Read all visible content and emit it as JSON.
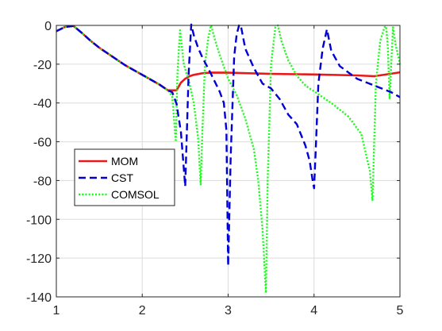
{
  "chart_data": {
    "type": "line",
    "title": "",
    "xlabel": "",
    "ylabel": "",
    "xlim": [
      1,
      5
    ],
    "ylim": [
      -140,
      0
    ],
    "xticks": [
      1,
      2,
      3,
      4,
      5
    ],
    "yticks": [
      0,
      -20,
      -40,
      -60,
      -80,
      -100,
      -120,
      -140
    ],
    "grid": true,
    "legend_position": "lower-left",
    "series": [
      {
        "name": "MOM",
        "color": "#e8191b",
        "style": "solid",
        "x": [
          1.0,
          1.1,
          1.2,
          1.3,
          1.4,
          1.5,
          1.6,
          1.7,
          1.8,
          1.9,
          2.0,
          2.1,
          2.2,
          2.3,
          2.35,
          2.4,
          2.45,
          2.5,
          2.55,
          2.6,
          2.7,
          2.8,
          3.0,
          3.5,
          4.0,
          4.5,
          4.7,
          4.85,
          5.0
        ],
        "y": [
          -3.0,
          -0.8,
          -0.3,
          -4.0,
          -8.0,
          -11.5,
          -14.5,
          -17.5,
          -20.5,
          -23.0,
          -25.5,
          -28.0,
          -30.5,
          -33.5,
          -33.5,
          -33.5,
          -29.5,
          -27.5,
          -26.2,
          -25.5,
          -24.7,
          -24.3,
          -24.4,
          -25.0,
          -25.3,
          -25.8,
          -26.2,
          -25.2,
          -24.2
        ]
      },
      {
        "name": "CST",
        "color": "#0000d4",
        "style": "dashed",
        "x": [
          1.0,
          1.1,
          1.2,
          1.3,
          1.4,
          1.5,
          1.6,
          1.7,
          1.8,
          1.9,
          2.0,
          2.1,
          2.2,
          2.3,
          2.35,
          2.4,
          2.45,
          2.5,
          2.54,
          2.57,
          2.6,
          2.65,
          2.7,
          2.8,
          2.9,
          2.95,
          2.98,
          3.0,
          3.03,
          3.07,
          3.1,
          3.13,
          3.15,
          3.2,
          3.3,
          3.4,
          3.5,
          3.6,
          3.7,
          3.8,
          3.9,
          3.95,
          3.98,
          4.0,
          4.02,
          4.05,
          4.1,
          4.15,
          4.2,
          4.3,
          4.5,
          4.7,
          4.9,
          5.0
        ],
        "y": [
          -3.0,
          -0.8,
          -0.3,
          -4.0,
          -8.0,
          -11.5,
          -14.5,
          -17.5,
          -20.5,
          -23.0,
          -25.5,
          -28.0,
          -30.5,
          -33.5,
          -34.5,
          -40.5,
          -55.0,
          -83.0,
          -25.0,
          0.5,
          -5.0,
          -11.5,
          -16.5,
          -25.0,
          -34.0,
          -40.0,
          -54.0,
          -124.0,
          -68.0,
          -16.0,
          -4.5,
          0.5,
          -0.5,
          -12.0,
          -22.0,
          -30.0,
          -32.5,
          -38.0,
          -46.0,
          -51.0,
          -62.0,
          -70.0,
          -79.0,
          -84.0,
          -64.0,
          -30.0,
          -12.0,
          -2.0,
          -13.0,
          -21.0,
          -27.5,
          -31.0,
          -34.5,
          -37.0
        ]
      },
      {
        "name": "COMSOL",
        "color": "#11ff11",
        "style": "dotted",
        "x": [
          1.0,
          1.1,
          1.2,
          1.3,
          1.4,
          1.5,
          1.6,
          1.7,
          1.8,
          1.9,
          2.0,
          2.1,
          2.2,
          2.3,
          2.35,
          2.39,
          2.41,
          2.44,
          2.46,
          2.48,
          2.5,
          2.55,
          2.6,
          2.65,
          2.68,
          2.7,
          2.73,
          2.77,
          2.8,
          2.85,
          2.9,
          3.0,
          3.1,
          3.2,
          3.3,
          3.35,
          3.4,
          3.44,
          3.46,
          3.5,
          3.55,
          3.58,
          3.62,
          3.7,
          3.8,
          3.9,
          4.0,
          4.2,
          4.4,
          4.55,
          4.65,
          4.68,
          4.72,
          4.77,
          4.82,
          4.84,
          4.86,
          4.88,
          4.9,
          4.92,
          4.95,
          5.0
        ],
        "y": [
          -3.0,
          -0.8,
          -0.3,
          -4.0,
          -8.0,
          -11.5,
          -14.5,
          -17.5,
          -20.5,
          -23.0,
          -25.5,
          -28.0,
          -30.5,
          -33.5,
          -36.5,
          -60.0,
          -25.0,
          -2.5,
          -10.0,
          -19.0,
          -22.5,
          -30.0,
          -40.0,
          -58.0,
          -82.0,
          -55.0,
          -20.0,
          -6.0,
          0.0,
          -8.0,
          -15.0,
          -27.5,
          -36.0,
          -48.0,
          -64.0,
          -80.0,
          -105.0,
          -138.0,
          -80.0,
          -20.0,
          -1.0,
          0.0,
          -8.0,
          -18.0,
          -26.0,
          -31.0,
          -34.0,
          -40.0,
          -47.0,
          -56.0,
          -75.0,
          -90.0,
          -30.0,
          -8.0,
          -1.0,
          -0.5,
          -12.0,
          -38.0,
          -18.0,
          -1.0,
          -10.0,
          -20.0
        ]
      }
    ]
  }
}
